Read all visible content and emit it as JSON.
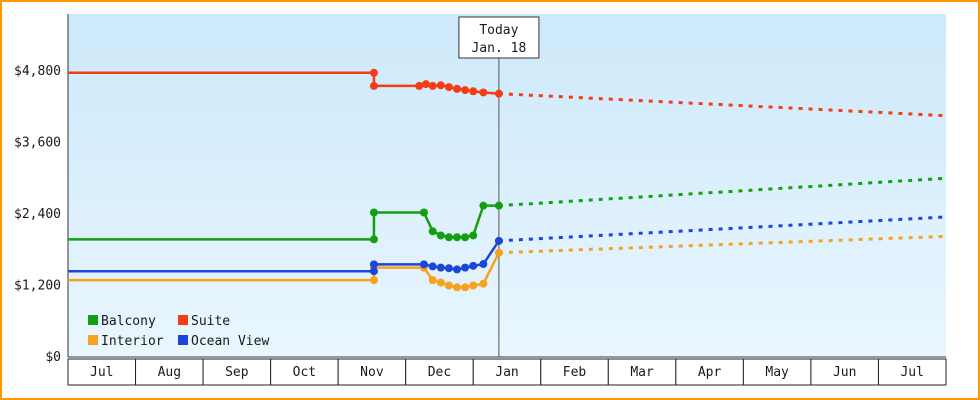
{
  "chart_data": {
    "type": "line",
    "title": "",
    "xlabel": "",
    "ylabel": "",
    "x_labels": [
      "Jul",
      "Aug",
      "Sep",
      "Oct",
      "Nov",
      "Dec",
      "Jan",
      "Feb",
      "Mar",
      "Apr",
      "May",
      "Jun",
      "Jul"
    ],
    "xlim": [
      0,
      13
    ],
    "ylim": [
      0,
      4800
    ],
    "y_ticks": [
      {
        "value": 0,
        "label": "$0"
      },
      {
        "value": 1200,
        "label": "$1,200"
      },
      {
        "value": 2400,
        "label": "$2,400"
      },
      {
        "value": 3600,
        "label": "$3,600"
      },
      {
        "value": 4800,
        "label": "$4,800"
      }
    ],
    "grid": false,
    "legend_position": "bottom-left",
    "today": {
      "x": 6.38,
      "line1": "Today",
      "line2": "Jan. 18"
    },
    "series": [
      {
        "name": "Balcony",
        "color": "#12a012",
        "solid": [
          [
            0,
            1975
          ],
          [
            4.53,
            1975
          ],
          [
            4.53,
            2425
          ],
          [
            5.27,
            2425
          ],
          [
            5.4,
            2110
          ],
          [
            5.52,
            2040
          ],
          [
            5.64,
            2010
          ],
          [
            5.76,
            2010
          ],
          [
            5.88,
            2010
          ],
          [
            6.0,
            2040
          ],
          [
            6.15,
            2540
          ],
          [
            6.38,
            2540
          ]
        ],
        "dashed": [
          [
            6.38,
            2540
          ],
          [
            13,
            3000
          ]
        ]
      },
      {
        "name": "Suite",
        "color": "#f43d17",
        "solid": [
          [
            0,
            4770
          ],
          [
            4.53,
            4770
          ],
          [
            4.53,
            4550
          ],
          [
            5.2,
            4550
          ],
          [
            5.3,
            4580
          ],
          [
            5.4,
            4550
          ],
          [
            5.52,
            4560
          ],
          [
            5.64,
            4530
          ],
          [
            5.76,
            4500
          ],
          [
            5.88,
            4480
          ],
          [
            6.0,
            4460
          ],
          [
            6.15,
            4440
          ],
          [
            6.38,
            4420
          ]
        ],
        "dashed": [
          [
            6.38,
            4420
          ],
          [
            13,
            4050
          ]
        ]
      },
      {
        "name": "Interior",
        "color": "#f6a21d",
        "solid": [
          [
            0,
            1290
          ],
          [
            4.53,
            1290
          ],
          [
            4.53,
            1500
          ],
          [
            5.27,
            1500
          ],
          [
            5.4,
            1290
          ],
          [
            5.52,
            1250
          ],
          [
            5.64,
            1200
          ],
          [
            5.76,
            1170
          ],
          [
            5.88,
            1170
          ],
          [
            6.0,
            1200
          ],
          [
            6.15,
            1230
          ],
          [
            6.38,
            1750
          ]
        ],
        "dashed": [
          [
            6.38,
            1750
          ],
          [
            13,
            2025
          ]
        ]
      },
      {
        "name": "Ocean View",
        "color": "#1c45da",
        "solid": [
          [
            0,
            1440
          ],
          [
            4.53,
            1440
          ],
          [
            4.53,
            1555
          ],
          [
            5.27,
            1555
          ],
          [
            5.4,
            1520
          ],
          [
            5.52,
            1500
          ],
          [
            5.64,
            1490
          ],
          [
            5.76,
            1470
          ],
          [
            5.88,
            1500
          ],
          [
            6.0,
            1530
          ],
          [
            6.15,
            1560
          ],
          [
            6.38,
            1950
          ]
        ],
        "dashed": [
          [
            6.38,
            1950
          ],
          [
            13,
            2350
          ]
        ]
      }
    ],
    "colors": {
      "frame_border": "#ff9900",
      "plot_bg_top": "#cde9fa",
      "plot_bg_bottom": "#e9f6fe",
      "axis": "#333333",
      "cell_border": "#222222",
      "today_line": "#555555",
      "text": "#1a1a1a"
    }
  }
}
